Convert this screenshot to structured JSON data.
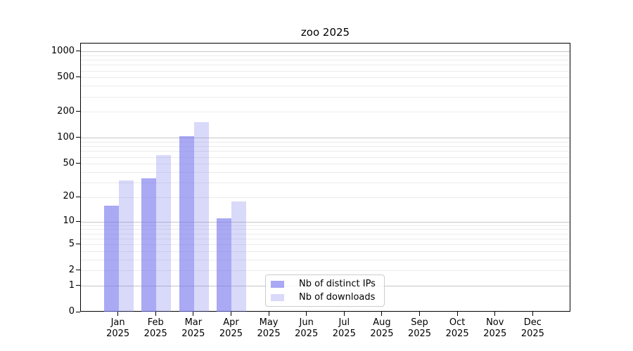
{
  "chart_data": {
    "type": "bar",
    "title": "zoo 2025",
    "categories": [
      {
        "month": "Jan",
        "year": "2025"
      },
      {
        "month": "Feb",
        "year": "2025"
      },
      {
        "month": "Mar",
        "year": "2025"
      },
      {
        "month": "Apr",
        "year": "2025"
      },
      {
        "month": "May",
        "year": "2025"
      },
      {
        "month": "Jun",
        "year": "2025"
      },
      {
        "month": "Jul",
        "year": "2025"
      },
      {
        "month": "Aug",
        "year": "2025"
      },
      {
        "month": "Sep",
        "year": "2025"
      },
      {
        "month": "Oct",
        "year": "2025"
      },
      {
        "month": "Nov",
        "year": "2025"
      },
      {
        "month": "Dec",
        "year": "2025"
      }
    ],
    "series": [
      {
        "name": "Nb of distinct IPs",
        "color": "rgba(119,119,238,0.63)",
        "values": [
          16,
          34,
          105,
          11,
          0,
          0,
          0,
          0,
          0,
          0,
          0,
          0
        ]
      },
      {
        "name": "Nb of downloads",
        "color": "rgba(119,119,238,0.28)",
        "values": [
          32,
          64,
          155,
          18,
          0,
          0,
          0,
          0,
          0,
          0,
          0,
          0
        ]
      }
    ],
    "yscale": "log1p",
    "ylim": [
      0,
      1243
    ],
    "yticks": [
      0,
      1,
      2,
      5,
      10,
      20,
      50,
      100,
      200,
      500,
      1000
    ],
    "grid": {
      "major_at": [
        1,
        10,
        100,
        1000
      ],
      "minor_at": [
        2,
        3,
        4,
        5,
        6,
        7,
        8,
        9,
        20,
        30,
        40,
        50,
        60,
        70,
        80,
        90,
        200,
        300,
        400,
        500,
        600,
        700,
        800,
        900
      ],
      "major_color": "#c6c6c6",
      "minor_color": "#ececec"
    },
    "legend": {
      "position": "lower-center",
      "border_color": "#cccccc"
    },
    "axis_color": "#000000",
    "background": "#ffffff"
  }
}
